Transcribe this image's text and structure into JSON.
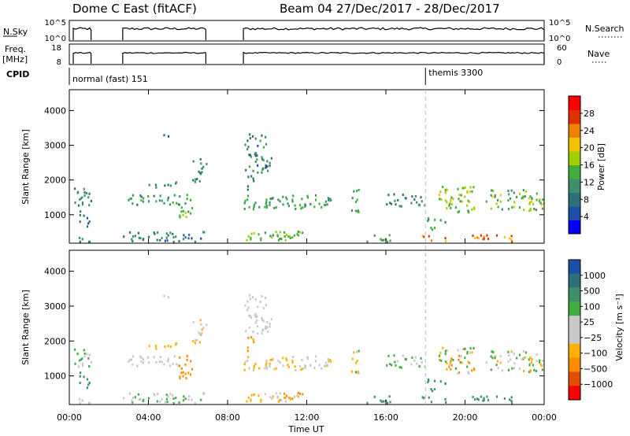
{
  "chart_data": {
    "type": "heatmap",
    "title_left": "Dome C East (fitACF)",
    "title_right": "Beam 04  27/Dec/2017 - 28/Dec/2017",
    "x_axis": {
      "label": "Time UT",
      "range_hours": [
        0,
        24
      ],
      "ticks": [
        0,
        4,
        8,
        12,
        16,
        20,
        24
      ],
      "tick_labels": [
        "00:00",
        "04:00",
        "08:00",
        "12:00",
        "16:00",
        "20:00",
        "00:00"
      ]
    },
    "top_panels": {
      "nsky_label": "N.Sky",
      "nsky_ticks": [
        "10^5",
        "10^0"
      ],
      "nsearch_label": "N.Search",
      "nsearch_ticks": [
        "10^5",
        "10^0"
      ],
      "freq_label": "Freq.",
      "freq_unit": "[MHz]",
      "freq_ticks": [
        "18",
        "8"
      ],
      "nave_label": "Nave",
      "nave_ticks": [
        "60",
        "0"
      ],
      "operating_intervals_hours": [
        [
          0.2,
          1.1
        ],
        [
          2.7,
          6.9
        ],
        [
          8.8,
          24
        ]
      ],
      "cpid_label": "CPID",
      "cpid_segments": [
        {
          "start_hour": 0,
          "label": "normal (fast) 151"
        },
        {
          "start_hour": 18.0,
          "label": "themis 3300"
        }
      ]
    },
    "panels": [
      {
        "name": "Power",
        "y_label": "Slant Range [km]",
        "y_range": [
          180,
          4600
        ],
        "y_ticks": [
          1000,
          2000,
          3000,
          4000
        ],
        "colorbar_label": "Power [dB]",
        "colorbar_ticks": [
          4,
          8,
          12,
          16,
          20,
          24,
          28
        ],
        "colorbar_range": [
          0,
          32
        ]
      },
      {
        "name": "Velocity",
        "y_label": "Slant Range [km]",
        "y_range": [
          180,
          4600
        ],
        "y_ticks": [
          1000,
          2000,
          3000,
          4000
        ],
        "colorbar_label": "Velocity [m s⁻¹]",
        "colorbar_ticks": [
          "1000",
          "500",
          "100",
          "25",
          "−25",
          "−100",
          "−500",
          "−1000"
        ]
      }
    ],
    "scatter_regions": [
      {
        "t": [
          0.2,
          1.1
        ],
        "r": [
          1200,
          1800
        ],
        "p": [
          8,
          12
        ],
        "v": [
          -25,
          100
        ]
      },
      {
        "t": [
          0.5,
          1.0
        ],
        "r": [
          600,
          1100
        ],
        "p": [
          6,
          10
        ],
        "v": [
          100,
          300
        ]
      },
      {
        "t": [
          0.2,
          1.1
        ],
        "r": [
          200,
          350
        ],
        "p": [
          6,
          12
        ],
        "v": [
          -25,
          25
        ]
      },
      {
        "t": [
          2.7,
          5.6
        ],
        "r": [
          1250,
          1550
        ],
        "p": [
          8,
          14
        ],
        "v": [
          -25,
          25
        ]
      },
      {
        "t": [
          4.0,
          5.5
        ],
        "r": [
          1750,
          1950
        ],
        "p": [
          8,
          12
        ],
        "v": [
          -100,
          -25
        ]
      },
      {
        "t": [
          5.5,
          6.2
        ],
        "r": [
          900,
          1600
        ],
        "p": [
          12,
          18
        ],
        "v": [
          -300,
          -100
        ]
      },
      {
        "t": [
          6.2,
          6.9
        ],
        "r": [
          1900,
          2600
        ],
        "p": [
          8,
          12
        ],
        "v": [
          -60,
          25
        ]
      },
      {
        "t": [
          4.5,
          5.0
        ],
        "r": [
          3200,
          3500
        ],
        "p": [
          4,
          8
        ],
        "v": [
          -25,
          25
        ]
      },
      {
        "t": [
          2.7,
          6.9
        ],
        "r": [
          200,
          500
        ],
        "p": [
          6,
          12
        ],
        "v": [
          -25,
          60
        ]
      },
      {
        "t": [
          8.8,
          10.2
        ],
        "r": [
          2200,
          3300
        ],
        "p": [
          6,
          14
        ],
        "v": [
          -25,
          25
        ]
      },
      {
        "t": [
          8.8,
          9.5
        ],
        "r": [
          1700,
          2100
        ],
        "p": [
          6,
          10
        ],
        "v": [
          -200,
          -60
        ]
      },
      {
        "t": [
          8.8,
          13.2
        ],
        "r": [
          1150,
          1550
        ],
        "p": [
          10,
          16
        ],
        "v": [
          -60,
          25
        ]
      },
      {
        "t": [
          8.8,
          12.0
        ],
        "r": [
          250,
          500
        ],
        "p": [
          10,
          18
        ],
        "v": [
          -150,
          25
        ]
      },
      {
        "t": [
          10.0,
          11.5
        ],
        "r": [
          250,
          450
        ],
        "p": [
          12,
          20
        ],
        "v": [
          -60,
          25
        ]
      },
      {
        "t": [
          14.2,
          14.6
        ],
        "r": [
          1000,
          1900
        ],
        "p": [
          10,
          16
        ],
        "v": [
          -100,
          100
        ]
      },
      {
        "t": [
          15.0,
          16.5
        ],
        "r": [
          200,
          400
        ],
        "p": [
          10,
          16
        ],
        "v": [
          100,
          200
        ]
      },
      {
        "t": [
          16.0,
          18.0
        ],
        "r": [
          1200,
          1600
        ],
        "p": [
          6,
          12
        ],
        "v": [
          -25,
          100
        ]
      },
      {
        "t": [
          17.8,
          19.0
        ],
        "r": [
          200,
          450
        ],
        "p": [
          20,
          28
        ],
        "v": [
          100,
          200
        ]
      },
      {
        "t": [
          18.0,
          19.0
        ],
        "r": [
          450,
          900
        ],
        "p": [
          10,
          16
        ],
        "v": [
          100,
          200
        ]
      },
      {
        "t": [
          18.5,
          20.5
        ],
        "r": [
          1000,
          1800
        ],
        "p": [
          12,
          20
        ],
        "v": [
          -200,
          100
        ]
      },
      {
        "t": [
          20.0,
          22.5
        ],
        "r": [
          200,
          400
        ],
        "p": [
          20,
          28
        ],
        "v": [
          100,
          200
        ]
      },
      {
        "t": [
          21.0,
          24.0
        ],
        "r": [
          1100,
          1700
        ],
        "p": [
          10,
          20
        ],
        "v": [
          -60,
          100
        ]
      }
    ]
  },
  "colors": {
    "power_scale": [
      "#0000ff",
      "#1f4fa8",
      "#2e6f7a",
      "#3f8f6a",
      "#3fae3f",
      "#a0d000",
      "#f5c400",
      "#f08000",
      "#e03000",
      "#ff0000"
    ],
    "velocity_scale": [
      "#ff0000",
      "#e05000",
      "#ff8c00",
      "#ffb000",
      "#c8c8c8",
      "#c8c8c8",
      "#3fae3f",
      "#3f8f6a",
      "#2e6f7a",
      "#1f4fa8"
    ]
  }
}
